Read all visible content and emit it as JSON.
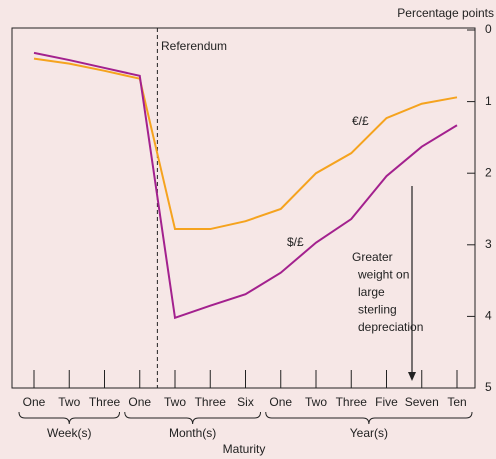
{
  "chart_data": {
    "type": "line",
    "y_label": "Percentage points",
    "x_label": "Maturity",
    "categories": [
      "One",
      "Two",
      "Three",
      "One",
      "Two",
      "Three",
      "Six",
      "One",
      "Two",
      "Three",
      "Five",
      "Seven",
      "Ten"
    ],
    "groups": [
      {
        "label": "Week(s)",
        "from": 0,
        "to": 2
      },
      {
        "label": "Month(s)",
        "from": 3,
        "to": 6
      },
      {
        "label": "Year(s)",
        "from": 7,
        "to": 12
      }
    ],
    "series": [
      {
        "name": "€/£",
        "color": "#f5a31e",
        "values": [
          0.4,
          0.47,
          0.57,
          0.68,
          2.78,
          2.78,
          2.67,
          2.5,
          2.0,
          1.72,
          1.23,
          1.03,
          0.94
        ]
      },
      {
        "name": "$/£",
        "color": "#a3218e",
        "values": [
          0.32,
          0.42,
          0.53,
          0.64,
          4.02,
          3.85,
          3.69,
          3.39,
          2.97,
          2.64,
          2.04,
          1.63,
          1.33
        ]
      }
    ],
    "ylim": [
      0,
      5
    ],
    "yticks": [
      0,
      1,
      2,
      3,
      4,
      5
    ],
    "y_inverted": true,
    "y_axis_side": "right",
    "annotations": {
      "event": "Referendum",
      "note": [
        "Greater",
        "weight on",
        "large",
        "sterling",
        "depreciation"
      ]
    }
  }
}
